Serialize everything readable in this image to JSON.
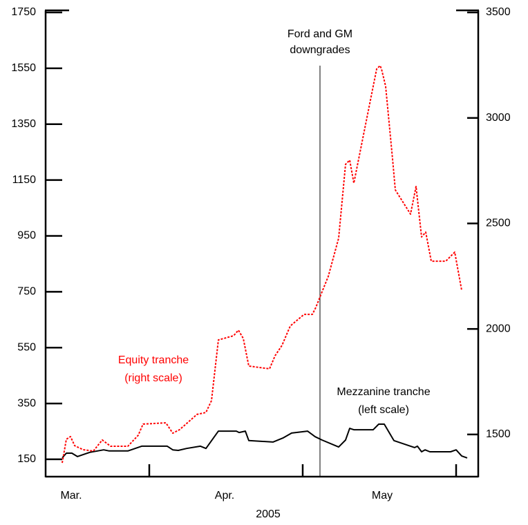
{
  "chart_data": {
    "type": "line",
    "x_label": "2005",
    "xlim": [
      0,
      626
    ],
    "xticks": [
      150,
      372,
      594
    ],
    "month_labels": [
      {
        "value": 37,
        "label": "Mar."
      },
      {
        "value": 259,
        "label": "Apr."
      },
      {
        "value": 487,
        "label": "May"
      }
    ],
    "ylim": [
      88,
      1750
    ],
    "yticks": [
      150,
      350,
      550,
      750,
      950,
      1150,
      1350,
      1550,
      1750
    ],
    "y2lim": [
      1300,
      3500
    ],
    "y2ticks": [
      1500,
      2000,
      2500,
      3000,
      3500
    ],
    "event": {
      "x": 397,
      "label": [
        "Ford and GM",
        "downgrades"
      ]
    },
    "series": [
      {
        "label": [
          "Mezzanine tranche",
          "(left scale)"
        ],
        "color": "#000000",
        "style": "solid",
        "x": [
          24,
          30,
          38,
          46,
          64,
          84,
          92,
          119,
          139,
          176,
          184,
          192,
          204,
          224,
          232,
          250,
          276,
          280,
          289,
          294,
          329,
          344,
          356,
          379,
          390,
          400,
          424,
          434,
          440,
          446,
          474,
          482,
          490,
          504,
          534,
          538,
          544,
          549,
          556,
          586,
          594,
          602,
          610
        ],
        "values": [
          155,
          172,
          172,
          160,
          175,
          184,
          180,
          180,
          197,
          197,
          184,
          182,
          189,
          197,
          189,
          251,
          251,
          246,
          251,
          217,
          212,
          227,
          244,
          251,
          231,
          219,
          194,
          219,
          261,
          256,
          256,
          276,
          276,
          217,
          192,
          197,
          177,
          184,
          177,
          177,
          184,
          162,
          155
        ]
      },
      {
        "label": [
          "Equity tranche",
          "(right scale)"
        ],
        "color": "#ff0000",
        "style": "dotted",
        "axis": "y2",
        "x": [
          24,
          30,
          36,
          42,
          54,
          69,
          82,
          94,
          119,
          134,
          141,
          174,
          184,
          194,
          219,
          232,
          240,
          250,
          272,
          279,
          286,
          294,
          324,
          332,
          342,
          354,
          374,
          386,
          391,
          399,
          409,
          424,
          434,
          440,
          446,
          454,
          479,
          484,
          486,
          492,
          502,
          506,
          528,
          536,
          544,
          550,
          558,
          579,
          592,
          602
        ],
        "values": [
          1365,
          1477,
          1490,
          1447,
          1428,
          1421,
          1474,
          1444,
          1444,
          1496,
          1549,
          1555,
          1506,
          1523,
          1595,
          1604,
          1660,
          1948,
          1968,
          1994,
          1955,
          1824,
          1811,
          1873,
          1922,
          2014,
          2069,
          2069,
          2102,
          2168,
          2249,
          2430,
          2780,
          2800,
          2691,
          2822,
          3232,
          3248,
          3232,
          3150,
          2806,
          2659,
          2544,
          2675,
          2436,
          2459,
          2321,
          2321,
          2364,
          2184
        ]
      }
    ]
  }
}
